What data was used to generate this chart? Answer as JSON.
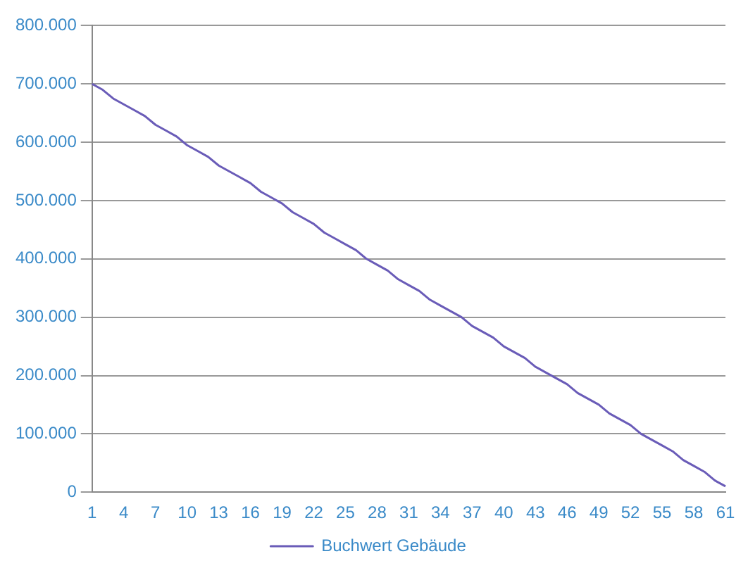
{
  "chart_data": {
    "type": "line",
    "categories": [
      "1",
      null,
      null,
      "4",
      null,
      null,
      "7",
      null,
      null,
      "10",
      null,
      null,
      "13",
      null,
      null,
      "16",
      null,
      null,
      "19",
      null,
      null,
      "22",
      null,
      null,
      "25",
      null,
      null,
      "28",
      null,
      null,
      "31",
      null,
      null,
      "34",
      null,
      null,
      "37",
      null,
      null,
      "40",
      null,
      null,
      "43",
      null,
      null,
      "46",
      null,
      null,
      "49",
      null,
      null,
      "52",
      null,
      null,
      "55",
      null,
      null,
      "58",
      null,
      null,
      "61"
    ],
    "series": [
      {
        "name": "Buchwert Gebäude",
        "color": "#6a5cb8",
        "values": [
          700000,
          690000,
          675000,
          665000,
          655000,
          645000,
          630000,
          620000,
          610000,
          595000,
          585000,
          575000,
          560000,
          550000,
          540000,
          530000,
          515000,
          505000,
          495000,
          480000,
          470000,
          460000,
          445000,
          435000,
          425000,
          415000,
          400000,
          390000,
          380000,
          365000,
          355000,
          345000,
          330000,
          320000,
          310000,
          300000,
          285000,
          275000,
          265000,
          250000,
          240000,
          230000,
          215000,
          205000,
          195000,
          185000,
          170000,
          160000,
          150000,
          135000,
          125000,
          115000,
          100000,
          90000,
          80000,
          70000,
          55000,
          45000,
          35000,
          20000,
          10000
        ]
      }
    ],
    "ylim": [
      0,
      800000
    ],
    "yticks": [
      {
        "value": 0,
        "label": "0"
      },
      {
        "value": 100000,
        "label": "100.000"
      },
      {
        "value": 200000,
        "label": "200.000"
      },
      {
        "value": 300000,
        "label": "300.000"
      },
      {
        "value": 400000,
        "label": "400.000"
      },
      {
        "value": 500000,
        "label": "500.000"
      },
      {
        "value": 600000,
        "label": "600.000"
      },
      {
        "value": 700000,
        "label": "700.000"
      },
      {
        "value": 800000,
        "label": "800.000"
      }
    ],
    "grid": "y",
    "legend": "bottom",
    "marker": "none",
    "line_style": "solid"
  }
}
